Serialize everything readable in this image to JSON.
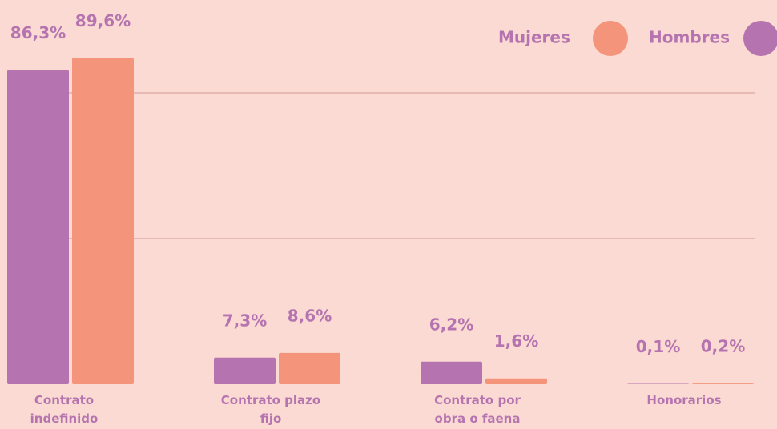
{
  "chart_data": {
    "type": "bar",
    "categories": [
      "Contrato indefinido",
      "Contrato plazo fijo",
      "Contrato por obra o faena",
      "Honorarios"
    ],
    "series": [
      {
        "name": "Hombres",
        "color": "#b574b0",
        "values": [
          86.3,
          7.3,
          6.2,
          0.1
        ],
        "value_labels": [
          "86,3%",
          "7,3%",
          "6,2%",
          "0,1%"
        ]
      },
      {
        "name": "Mujeres",
        "color": "#f4957b",
        "values": [
          89.6,
          8.6,
          1.6,
          0.2
        ],
        "value_labels": [
          "89,6%",
          "8,6%",
          "1,6%",
          "0,2%"
        ]
      }
    ],
    "ylim": [
      0,
      100
    ],
    "yticks": [
      40,
      80
    ],
    "grid": true,
    "legend": "top-right"
  }
}
